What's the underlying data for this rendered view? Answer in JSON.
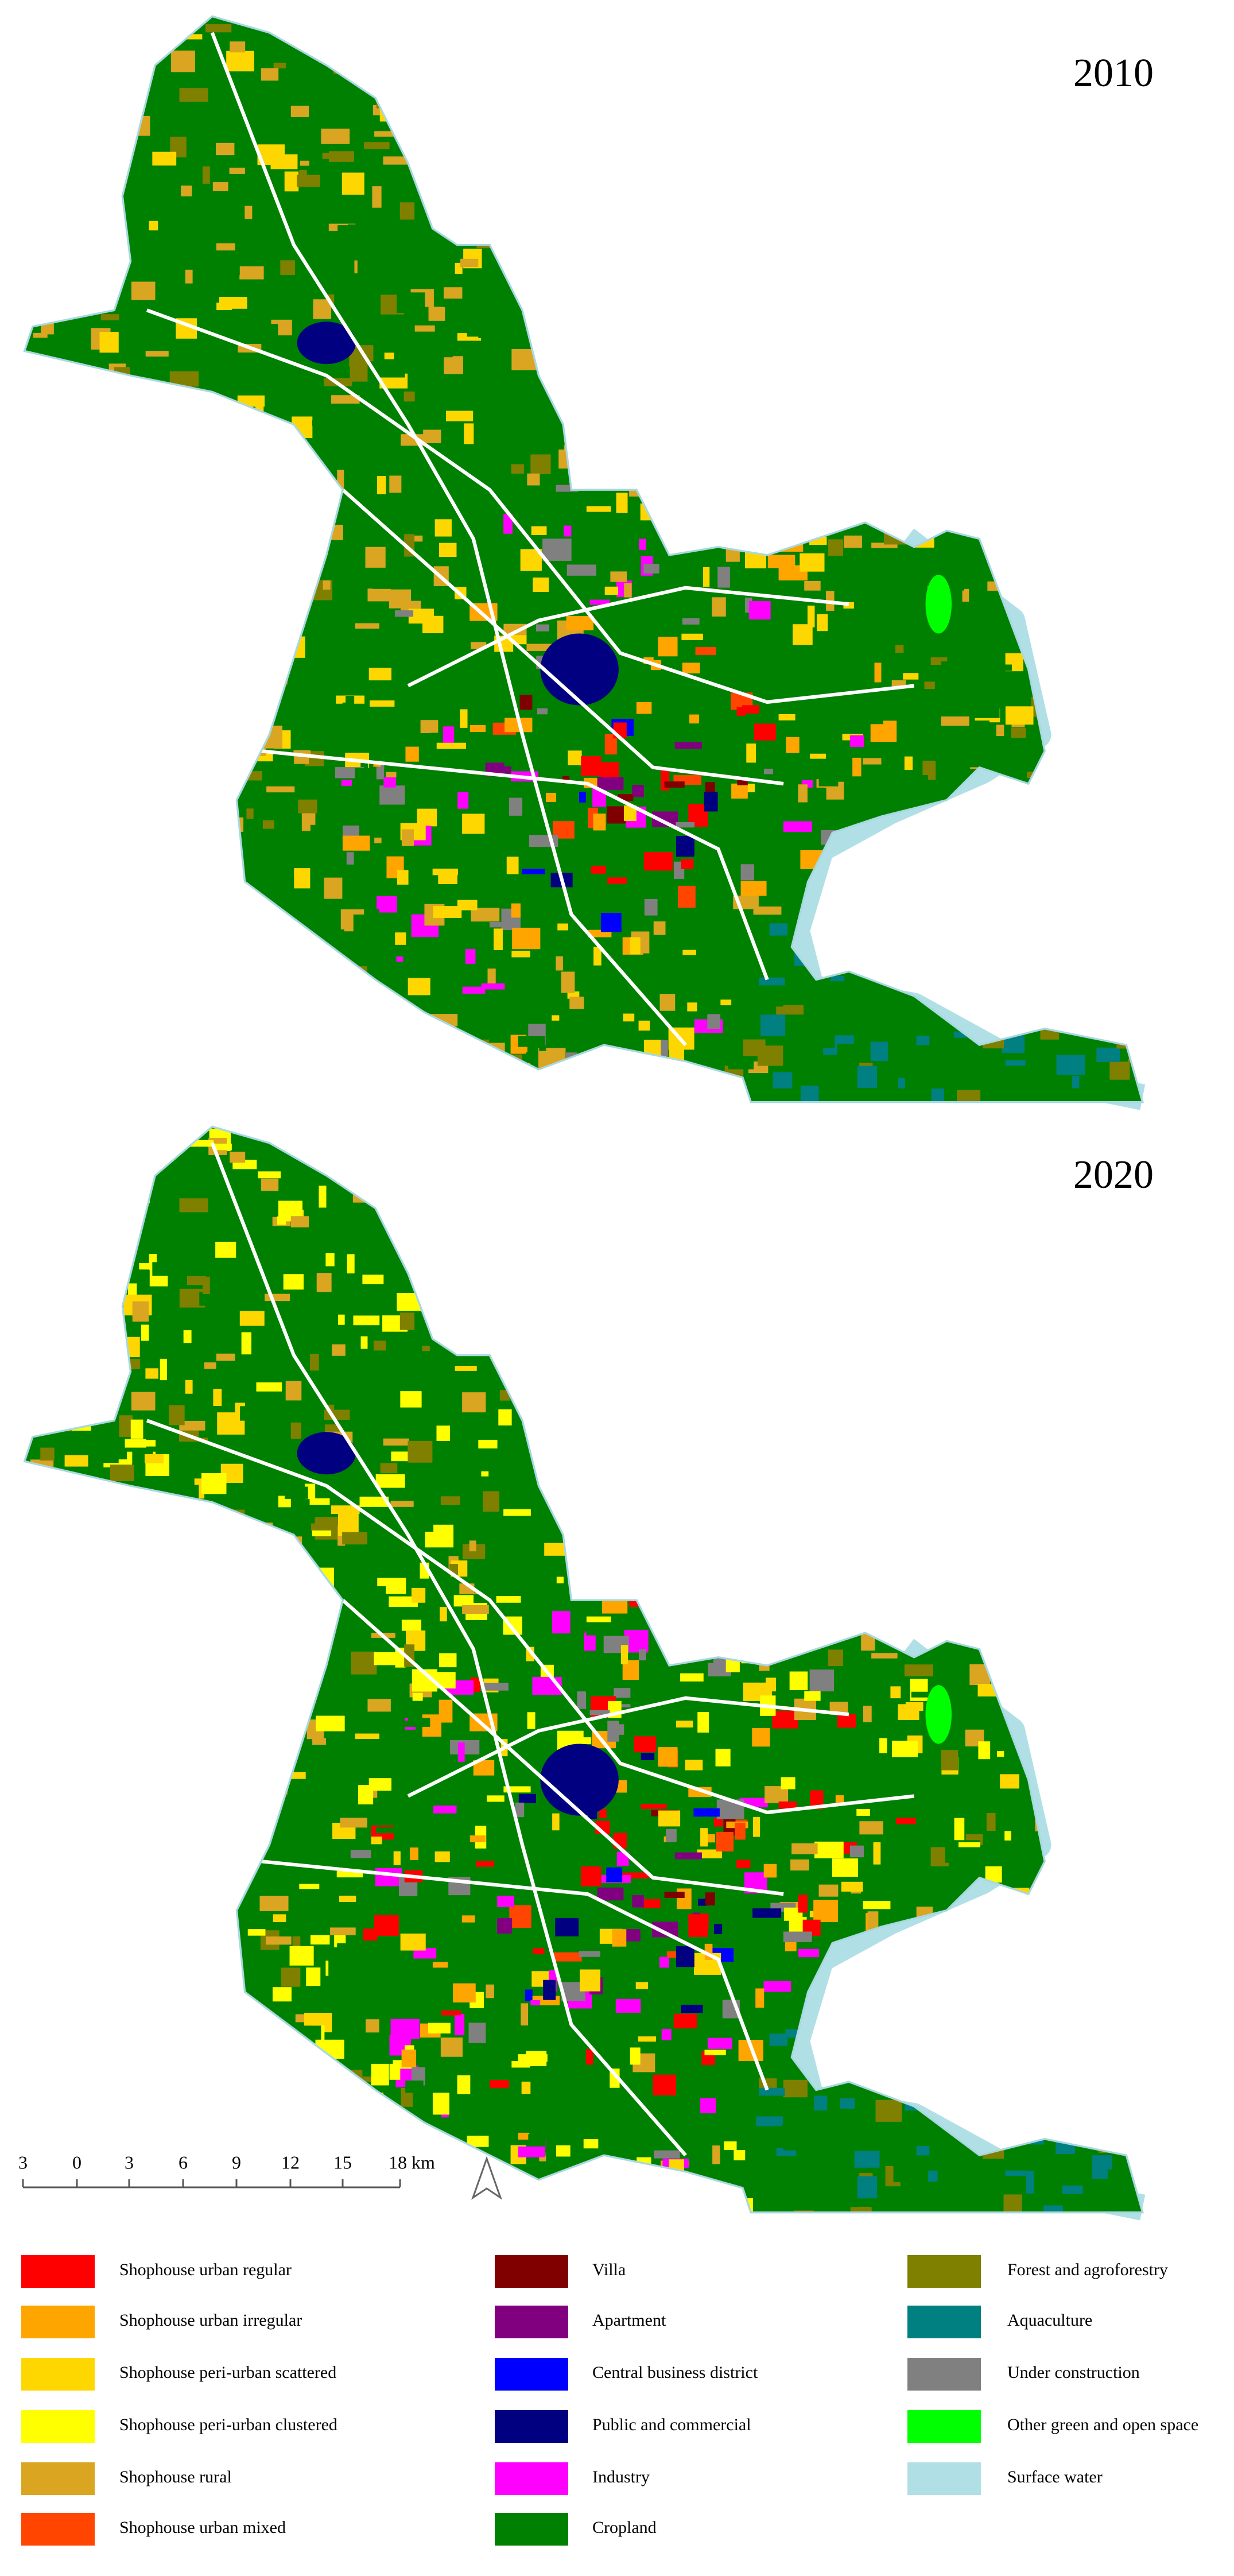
{
  "maps": [
    {
      "year": "2010"
    },
    {
      "year": "2020"
    }
  ],
  "scale_bar": {
    "labels": [
      "3",
      "0",
      "3",
      "6",
      "9",
      "12",
      "15",
      "18 km"
    ]
  },
  "legend": {
    "items": [
      {
        "label": "Shophouse urban regular",
        "color": "#ff0000"
      },
      {
        "label": "Shophouse urban irregular",
        "color": "#ffa500"
      },
      {
        "label": "Shophouse peri-urban scattered",
        "color": "#ffd700"
      },
      {
        "label": "Shophouse peri-urban clustered",
        "color": "#ffff00"
      },
      {
        "label": "Shophouse rural",
        "color": "#daa520"
      },
      {
        "label": "Shophouse urban mixed",
        "color": "#ff4500"
      },
      {
        "label": "Villa",
        "color": "#800000"
      },
      {
        "label": "Apartment",
        "color": "#800080"
      },
      {
        "label": "Central business district",
        "color": "#0000ff"
      },
      {
        "label": "Public and commercial",
        "color": "#000080"
      },
      {
        "label": "Industry",
        "color": "#ff00ff"
      },
      {
        "label": "Cropland",
        "color": "#008000"
      },
      {
        "label": "Forest and agroforestry",
        "color": "#808000"
      },
      {
        "label": "Aquaculture",
        "color": "#008080"
      },
      {
        "label": "Under construction",
        "color": "#808080"
      },
      {
        "label": "Other green and open space",
        "color": "#00ff00"
      },
      {
        "label": "Surface water",
        "color": "#b0e0e6"
      }
    ]
  }
}
